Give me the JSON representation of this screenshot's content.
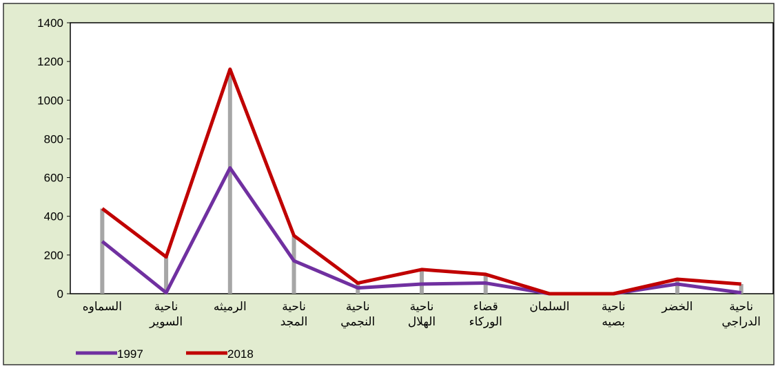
{
  "chart_data": {
    "type": "line",
    "categories": [
      "السماوه",
      "ناحية السوير",
      "الرميثه",
      "ناحية المجد",
      "ناحية النجمي",
      "ناحية الهلال",
      "قضاء الوركاء",
      "السلمان",
      "ناحية بصيه",
      "الخضر",
      "ناحية الدراجي"
    ],
    "series": [
      {
        "name": "1997",
        "color": "#7030a0",
        "values": [
          270,
          5,
          650,
          170,
          30,
          50,
          55,
          0,
          0,
          50,
          5
        ]
      },
      {
        "name": "2018",
        "color": "#c00000",
        "values": [
          440,
          190,
          1160,
          300,
          55,
          125,
          100,
          0,
          0,
          75,
          50
        ]
      }
    ],
    "ylim": [
      0,
      1400
    ],
    "yticks": [
      0,
      200,
      400,
      600,
      800,
      1000,
      1200,
      1400
    ],
    "drop_lines": true,
    "drop_line_color": "#a6a6a6",
    "legend": "bottom-left"
  }
}
